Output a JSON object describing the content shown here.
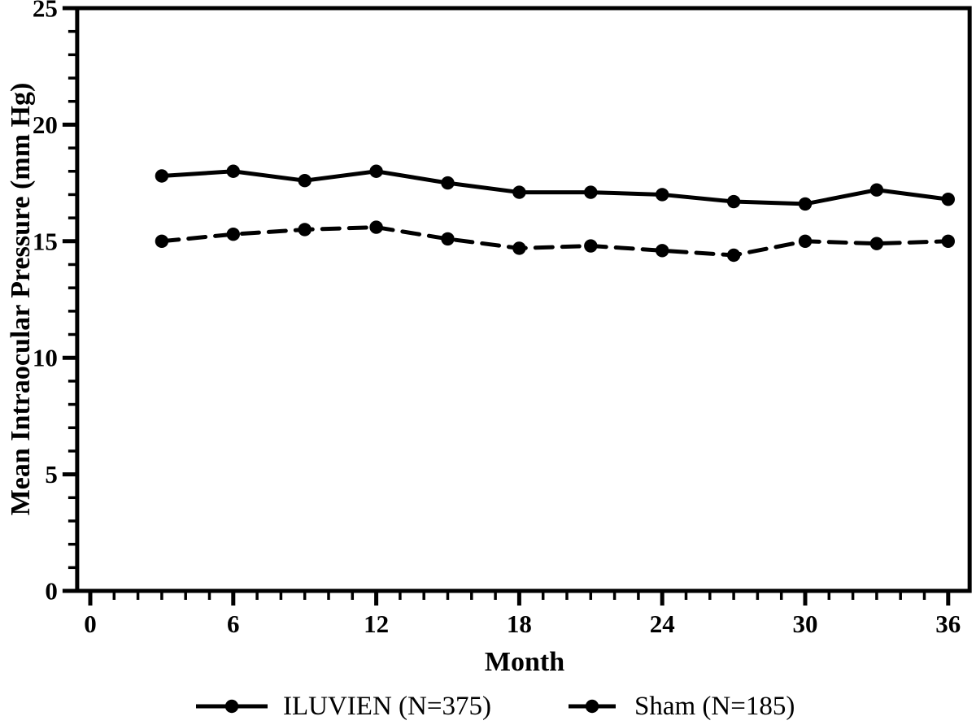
{
  "chart_data": {
    "type": "line",
    "title": "",
    "xlabel": "Month",
    "ylabel": "Mean Intraocular Pressure (mm Hg)",
    "x": [
      3,
      6,
      9,
      12,
      15,
      18,
      21,
      24,
      27,
      30,
      33,
      36
    ],
    "series": [
      {
        "name": "ILUVIEN (N=375)",
        "line_style": "solid",
        "marker": "filled-circle",
        "color": "#000000",
        "values": [
          17.8,
          18.0,
          17.6,
          18.0,
          17.5,
          17.1,
          17.1,
          17.0,
          16.7,
          16.6,
          17.2,
          16.8
        ]
      },
      {
        "name": "Sham (N=185)",
        "line_style": "dashed",
        "marker": "filled-circle",
        "color": "#000000",
        "values": [
          15.0,
          15.3,
          15.5,
          15.6,
          15.1,
          14.7,
          14.8,
          14.6,
          14.4,
          15.0,
          14.9,
          15.0
        ]
      }
    ],
    "xlim": [
      -0.55,
      36.9
    ],
    "ylim": [
      0,
      25
    ],
    "x_ticks_major": [
      0,
      6,
      12,
      18,
      24,
      30,
      36
    ],
    "x_minor_step": 1,
    "y_ticks_major": [
      0,
      5,
      10,
      15,
      20,
      25
    ],
    "y_minor_step": 1,
    "grid": false,
    "legend_position": "bottom",
    "frame": "full-box"
  },
  "colors": {
    "line": "#000000",
    "background": "#ffffff"
  }
}
